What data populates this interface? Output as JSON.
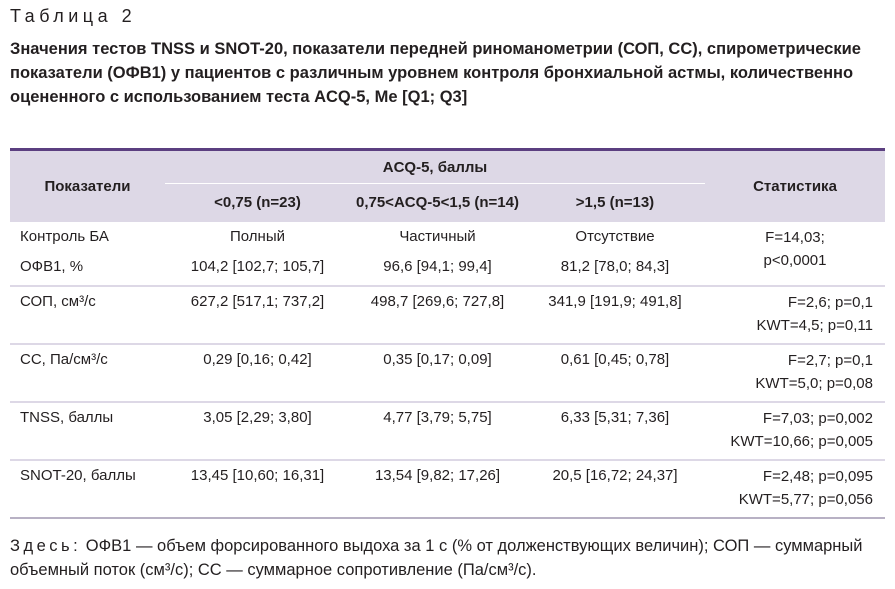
{
  "caption": "Таблица 2",
  "title": "Значения тестов TNSS и SNOT-20, показатели передней риноманометрии (СОП, СС), спирометрические показатели (ОФВ1) у пациентов с различным уровнем контроля бронхиальной астмы, количественно оцененного с использованием теста ACQ-5, Me [Q1; Q3]",
  "table": {
    "header": {
      "indicator": "Показатели",
      "group": "ACQ-5, баллы",
      "columns": [
        "<0,75 (n=23)",
        "0,75<ACQ-5<1,5 (n=14)",
        ">1,5 (n=13)"
      ],
      "statistics": "Статистика"
    },
    "rows": [
      {
        "cells": [
          "Контроль БА",
          "Полный",
          "Частичный",
          "Отсутствие"
        ],
        "statistics": [
          "F=14,03;",
          "p<0,0001"
        ]
      },
      {
        "cells": [
          "ОФВ1, %",
          "104,2 [102,7; 105,7]",
          "96,6 [94,1; 99,4]",
          "81,2 [78,0; 84,3]"
        ]
      },
      {
        "cells": [
          "СОП, см³/с",
          "627,2 [517,1; 737,2]",
          "498,7 [269,6; 727,8]",
          "341,9 [191,9; 491,8]"
        ],
        "statistics": [
          "F=2,6; p=0,1",
          "KWT=4,5; p=0,11"
        ]
      },
      {
        "cells": [
          "СС, Па/см³/с",
          "0,29 [0,16; 0,42]",
          "0,35 [0,17; 0,09]",
          "0,61 [0,45; 0,78]"
        ],
        "statistics": [
          "F=2,7; p=0,1",
          "KWT=5,0; p=0,08"
        ]
      },
      {
        "cells": [
          "TNSS, баллы",
          "3,05 [2,29; 3,80]",
          "4,77 [3,79; 5,75]",
          "6,33 [5,31; 7,36]"
        ],
        "statistics": [
          "F=7,03; p=0,002",
          "KWT=10,66; p=0,005"
        ]
      },
      {
        "cells": [
          "SNOT-20, баллы",
          "13,45 [10,60; 16,31]",
          "13,54 [9,82; 17,26]",
          "20,5 [16,72; 24,37]"
        ],
        "statistics": [
          "F=2,48; p=0,095",
          "KWT=5,77; p=0,056"
        ]
      }
    ]
  },
  "note": {
    "lead": "Здесь:",
    "text": "ОФВ1 — объем форсированного выдоха за 1 с (% от долженствующих величин); СОП — суммарный объемный поток (см³/с); СС — суммарное сопротивление (Па/см³/с)."
  }
}
